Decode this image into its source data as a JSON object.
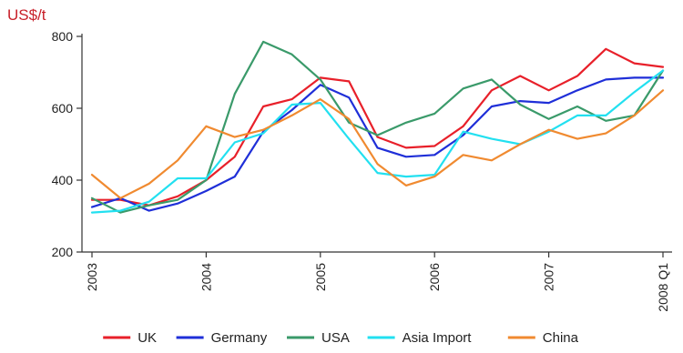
{
  "chart_data": {
    "type": "line",
    "ylabel": "US$/t",
    "ylim": [
      200,
      800
    ],
    "yticks": [
      200,
      400,
      600,
      800
    ],
    "xticks": [
      {
        "x": 2003.0,
        "label": "2003"
      },
      {
        "x": 2004.0,
        "label": "2004"
      },
      {
        "x": 2005.0,
        "label": "2005"
      },
      {
        "x": 2006.0,
        "label": "2006"
      },
      {
        "x": 2007.0,
        "label": "2007"
      },
      {
        "x": 2008.0,
        "label": "2008 Q1"
      }
    ],
    "xlim": [
      2003.0,
      2008.0
    ],
    "grid": false,
    "legend_position": "bottom",
    "x": [
      2003.0,
      2003.25,
      2003.5,
      2003.75,
      2004.0,
      2004.25,
      2004.5,
      2004.75,
      2005.0,
      2005.25,
      2005.5,
      2005.75,
      2006.0,
      2006.25,
      2006.5,
      2006.75,
      2007.0,
      2007.25,
      2007.5,
      2007.75,
      2008.0
    ],
    "series": [
      {
        "name": "UK",
        "color": "#e8202a",
        "values": [
          345,
          345,
          330,
          355,
          400,
          465,
          605,
          625,
          685,
          675,
          520,
          490,
          495,
          550,
          650,
          690,
          650,
          690,
          765,
          725,
          715
        ]
      },
      {
        "name": "Germany",
        "color": "#1f2fd8",
        "values": [
          325,
          350,
          315,
          335,
          370,
          410,
          535,
          595,
          665,
          630,
          490,
          465,
          470,
          525,
          605,
          620,
          615,
          650,
          680,
          685,
          685
        ]
      },
      {
        "name": "USA",
        "color": "#3a9a6a",
        "values": [
          350,
          310,
          330,
          345,
          400,
          640,
          785,
          750,
          680,
          560,
          525,
          560,
          585,
          655,
          680,
          610,
          570,
          605,
          565,
          580,
          705
        ]
      },
      {
        "name": "Asia Import",
        "color": "#22e0f0",
        "values": [
          310,
          315,
          340,
          405,
          405,
          505,
          530,
          610,
          615,
          515,
          420,
          410,
          415,
          535,
          515,
          500,
          535,
          580,
          580,
          645,
          705
        ]
      },
      {
        "name": "China",
        "color": "#f08a30",
        "values": [
          415,
          350,
          390,
          455,
          550,
          520,
          540,
          580,
          625,
          570,
          445,
          385,
          410,
          470,
          455,
          500,
          540,
          515,
          530,
          580,
          650
        ]
      }
    ]
  }
}
